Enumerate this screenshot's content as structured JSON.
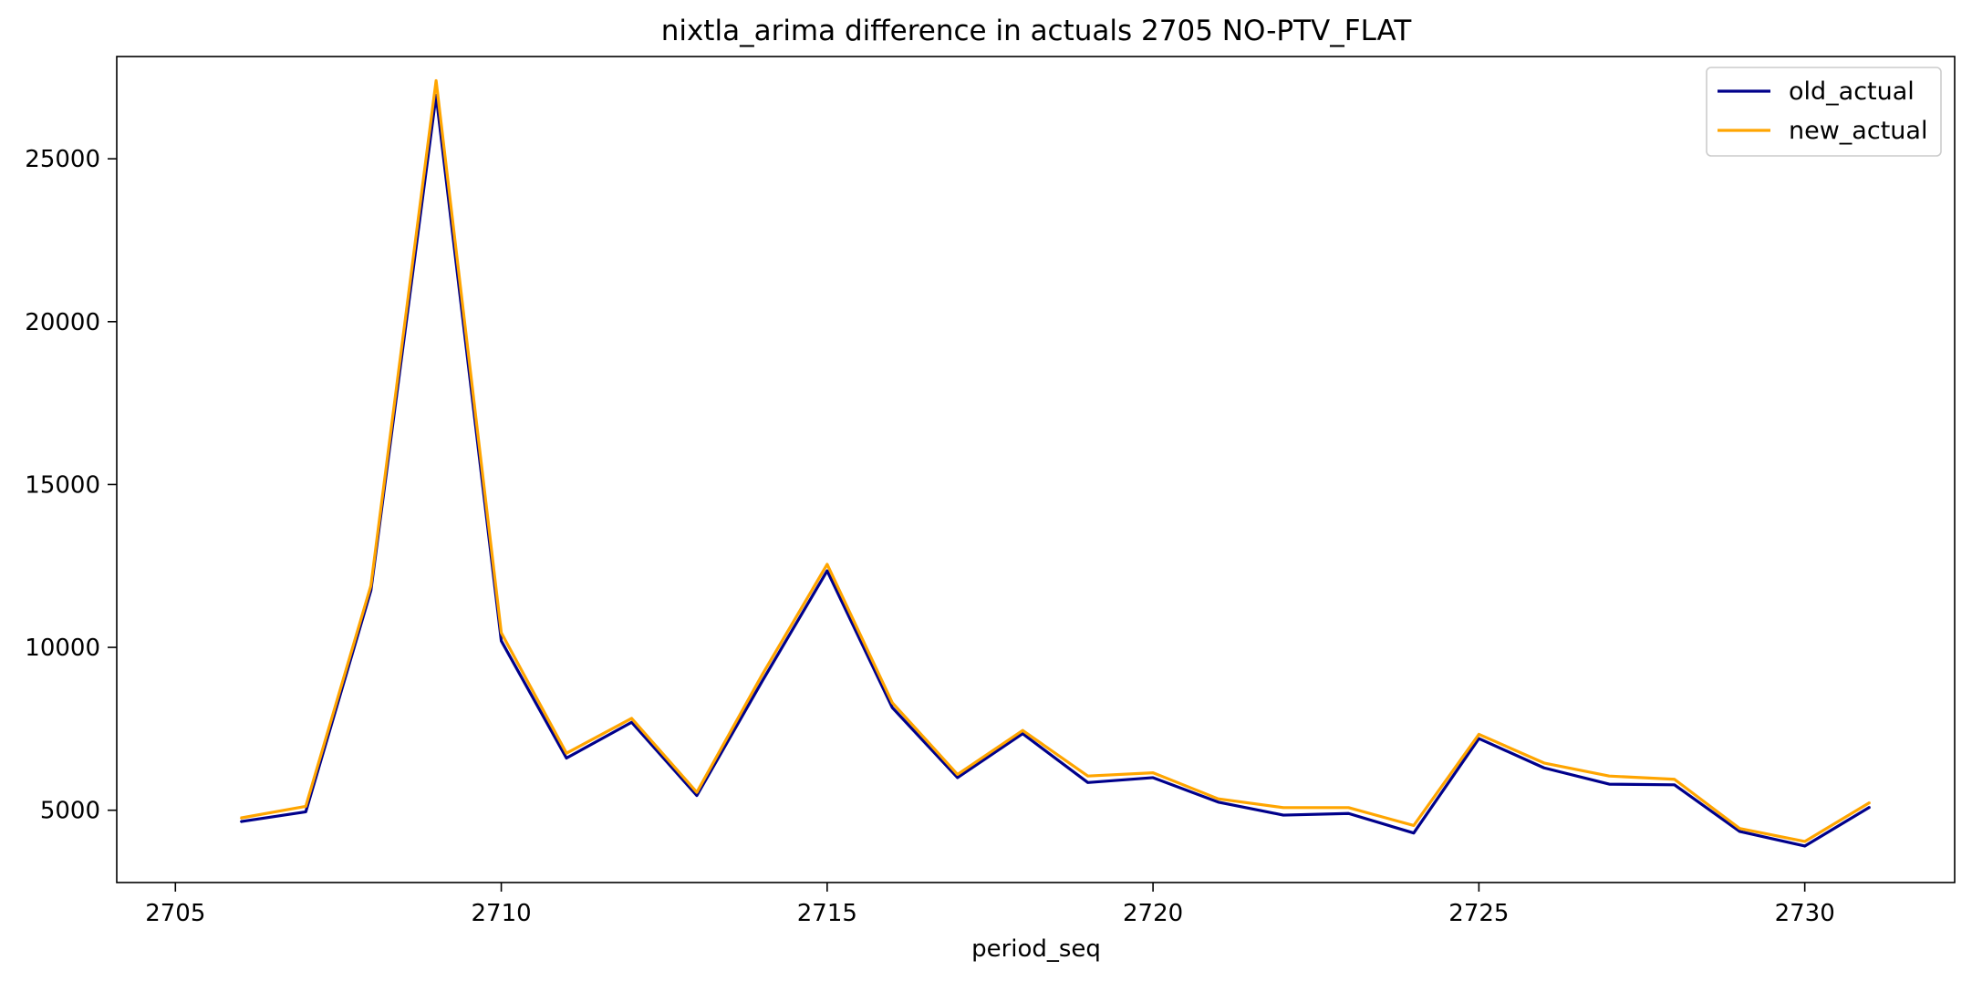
{
  "chart_data": {
    "type": "line",
    "title": "nixtla_arima difference in actuals 2705 NO-PTV_FLAT",
    "xlabel": "period_seq",
    "ylabel": "",
    "xlim": [
      2704.1,
      2732.3
    ],
    "ylim": [
      2780,
      28140
    ],
    "xticks": [
      2705,
      2710,
      2715,
      2720,
      2725,
      2730
    ],
    "yticks": [
      5000,
      10000,
      15000,
      20000,
      25000
    ],
    "grid": false,
    "legend_position": "top-right",
    "x": [
      2706,
      2707,
      2708,
      2709,
      2710,
      2711,
      2712,
      2713,
      2714,
      2715,
      2716,
      2717,
      2718,
      2719,
      2720,
      2721,
      2722,
      2723,
      2724,
      2725,
      2726,
      2727,
      2728,
      2729,
      2730,
      2731
    ],
    "series": [
      {
        "name": "old_actual",
        "color": "#00008b",
        "values": [
          4650,
          4950,
          11750,
          26950,
          10200,
          6600,
          7700,
          5450,
          8950,
          12350,
          8150,
          6000,
          7350,
          5850,
          6000,
          5250,
          4850,
          4900,
          4300,
          7200,
          6300,
          5800,
          5780,
          4350,
          3900,
          5100
        ]
      },
      {
        "name": "new_actual",
        "color": "#ffa500",
        "values": [
          4760,
          5120,
          11900,
          27400,
          10450,
          6750,
          7820,
          5550,
          9150,
          12550,
          8300,
          6100,
          7450,
          6050,
          6150,
          5350,
          5080,
          5080,
          4530,
          7330,
          6450,
          6050,
          5950,
          4440,
          4040,
          5240
        ]
      }
    ]
  }
}
